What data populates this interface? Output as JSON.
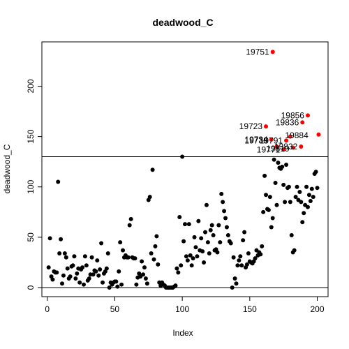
{
  "chart_data": {
    "type": "scatter",
    "title": "deadwood_C",
    "xlabel": "Index",
    "ylabel": "deadwood_C",
    "xlim": [
      -4,
      208
    ],
    "ylim": [
      -9,
      244
    ],
    "xticks": [
      0,
      50,
      100,
      150,
      200
    ],
    "yticks": [
      0,
      50,
      100,
      150,
      200
    ],
    "hlines": [
      0,
      130
    ],
    "point_color": "#000000",
    "highlight_color": "#ff0000",
    "series": [
      {
        "values": [
          [
            1,
            20
          ],
          [
            2,
            49
          ],
          [
            3,
            11
          ],
          [
            4,
            8
          ],
          [
            5,
            16
          ],
          [
            6,
            15
          ],
          [
            7,
            15
          ],
          [
            8,
            105
          ],
          [
            9,
            34
          ],
          [
            10,
            48
          ],
          [
            11,
            4
          ],
          [
            12,
            12
          ],
          [
            13,
            34
          ],
          [
            14,
            30
          ],
          [
            15,
            19
          ],
          [
            16,
            9
          ],
          [
            17,
            11
          ],
          [
            18,
            21
          ],
          [
            19,
            22
          ],
          [
            20,
            31
          ],
          [
            21,
            9
          ],
          [
            22,
            14
          ],
          [
            23,
            19
          ],
          [
            24,
            5
          ],
          [
            25,
            18
          ],
          [
            26,
            20
          ],
          [
            27,
            3
          ],
          [
            28,
            31
          ],
          [
            29,
            22
          ],
          [
            30,
            7
          ],
          [
            31,
            9
          ],
          [
            32,
            13
          ],
          [
            33,
            30
          ],
          [
            34,
            13
          ],
          [
            35,
            17
          ],
          [
            36,
            16
          ],
          [
            37,
            27
          ],
          [
            38,
            12
          ],
          [
            39,
            18
          ],
          [
            40,
            44
          ],
          [
            41,
            5
          ],
          [
            42,
            14
          ],
          [
            43,
            16
          ],
          [
            44,
            19
          ],
          [
            45,
            34
          ],
          [
            46,
            0
          ],
          [
            47,
            5
          ],
          [
            48,
            3
          ],
          [
            49,
            5
          ],
          [
            50,
            6
          ],
          [
            51,
            6
          ],
          [
            52,
            1
          ],
          [
            53,
            16
          ],
          [
            54,
            45
          ],
          [
            55,
            3
          ],
          [
            56,
            37
          ],
          [
            57,
            30
          ],
          [
            58,
            32
          ],
          [
            59,
            30
          ],
          [
            60,
            30
          ],
          [
            61,
            62
          ],
          [
            62,
            68
          ],
          [
            63,
            30
          ],
          [
            64,
            29
          ],
          [
            65,
            29
          ],
          [
            66,
            3
          ],
          [
            67,
            10
          ],
          [
            68,
            14
          ],
          [
            69,
            11
          ],
          [
            70,
            26
          ],
          [
            71,
            13
          ],
          [
            72,
            20
          ],
          [
            73,
            9
          ],
          [
            74,
            4
          ],
          [
            75,
            87
          ],
          [
            76,
            90
          ],
          [
            77,
            34
          ],
          [
            78,
            117
          ],
          [
            79,
            28
          ],
          [
            80,
            41
          ],
          [
            81,
            51
          ],
          [
            82,
            23
          ],
          [
            83,
            5
          ],
          [
            84,
            2
          ],
          [
            85,
            5
          ],
          [
            86,
            3
          ],
          [
            87,
            2
          ],
          [
            88,
            0
          ],
          [
            89,
            0
          ],
          [
            90,
            0
          ],
          [
            91,
            0
          ],
          [
            92,
            0
          ],
          [
            93,
            0
          ],
          [
            94,
            1
          ],
          [
            95,
            2
          ],
          [
            96,
            19
          ],
          [
            97,
            15
          ],
          [
            98,
            70
          ],
          [
            99,
            22
          ],
          [
            100,
            130
          ],
          [
            101,
            46
          ],
          [
            102,
            63
          ],
          [
            103,
            31
          ],
          [
            104,
            27
          ],
          [
            105,
            63
          ],
          [
            106,
            32
          ],
          [
            107,
            22
          ],
          [
            108,
            29
          ],
          [
            109,
            50
          ],
          [
            110,
            40
          ],
          [
            111,
            31
          ],
          [
            112,
            66
          ],
          [
            113,
            37
          ],
          [
            114,
            49
          ],
          [
            115,
            36
          ],
          [
            116,
            25
          ],
          [
            117,
            55
          ],
          [
            118,
            82
          ],
          [
            119,
            45
          ],
          [
            120,
            34
          ],
          [
            121,
            57
          ],
          [
            122,
            62
          ],
          [
            123,
            52
          ],
          [
            124,
            37
          ],
          [
            125,
            38
          ],
          [
            126,
            35
          ],
          [
            127,
            62
          ],
          [
            128,
            45
          ],
          [
            129,
            93
          ],
          [
            130,
            85
          ],
          [
            131,
            76
          ],
          [
            132,
            69
          ],
          [
            133,
            60
          ],
          [
            134,
            52
          ],
          [
            135,
            46
          ],
          [
            136,
            44
          ],
          [
            137,
            0
          ],
          [
            138,
            30
          ],
          [
            139,
            9
          ],
          [
            140,
            4
          ],
          [
            141,
            22
          ],
          [
            142,
            27
          ],
          [
            143,
            31
          ],
          [
            144,
            22
          ],
          [
            145,
            47
          ],
          [
            146,
            55
          ],
          [
            147,
            20
          ],
          [
            148,
            23
          ],
          [
            149,
            34
          ],
          [
            150,
            26
          ],
          [
            151,
            25
          ],
          [
            152,
            24
          ],
          [
            153,
            26
          ],
          [
            154,
            29
          ],
          [
            155,
            37
          ],
          [
            156,
            32
          ],
          [
            157,
            35
          ],
          [
            158,
            33
          ],
          [
            159,
            41
          ],
          [
            160,
            75
          ],
          [
            161,
            111
          ],
          [
            162,
            92
          ],
          [
            163,
            78
          ],
          [
            164,
            77
          ],
          [
            165,
            90
          ],
          [
            166,
            60
          ],
          [
            167,
            69
          ],
          [
            168,
            127
          ],
          [
            169,
            104
          ],
          [
            170,
            82
          ],
          [
            171,
            124
          ],
          [
            172,
            119
          ],
          [
            173,
            118
          ],
          [
            174,
            120
          ],
          [
            175,
            102
          ],
          [
            176,
            85
          ],
          [
            177,
            122
          ],
          [
            178,
            99
          ],
          [
            179,
            100
          ],
          [
            180,
            85
          ],
          [
            181,
            52
          ],
          [
            182,
            35
          ],
          [
            183,
            37
          ],
          [
            184,
            90
          ],
          [
            185,
            100
          ],
          [
            186,
            87
          ],
          [
            187,
            95
          ],
          [
            188,
            85
          ],
          [
            189,
            65
          ],
          [
            190,
            74
          ],
          [
            191,
            82
          ],
          [
            192,
            100
          ],
          [
            193,
            80
          ],
          [
            194,
            92
          ],
          [
            195,
            86
          ],
          [
            196,
            98
          ],
          [
            197,
            90
          ],
          [
            198,
            113
          ],
          [
            199,
            115
          ],
          [
            200,
            99
          ]
        ]
      },
      {
        "values": [
          [
            162,
            160
          ],
          [
            166,
            147
          ],
          [
            167,
            234
          ],
          [
            170,
            140
          ],
          [
            175,
            137
          ],
          [
            177,
            146
          ],
          [
            180,
            150
          ],
          [
            182,
            139
          ],
          [
            188,
            140
          ],
          [
            189,
            164
          ],
          [
            193,
            171
          ],
          [
            201,
            152
          ]
        ]
      }
    ],
    "point_labels": [
      {
        "x": 167,
        "y": 234,
        "text": "19751"
      },
      {
        "x": 162,
        "y": 160,
        "text": "19723"
      },
      {
        "x": 166,
        "y": 147,
        "text": "19734"
      },
      {
        "x": 166,
        "y": 146,
        "text": "19738"
      },
      {
        "x": 177,
        "y": 146,
        "text": "19791"
      },
      {
        "x": 175,
        "y": 137,
        "text": "19771"
      },
      {
        "x": 182,
        "y": 138,
        "text": "19819"
      },
      {
        "x": 188,
        "y": 140,
        "text": "19832"
      },
      {
        "x": 189,
        "y": 164,
        "text": "19836"
      },
      {
        "x": 193,
        "y": 171,
        "text": "19856"
      },
      {
        "x": 196,
        "y": 151,
        "text": "19884"
      }
    ]
  }
}
